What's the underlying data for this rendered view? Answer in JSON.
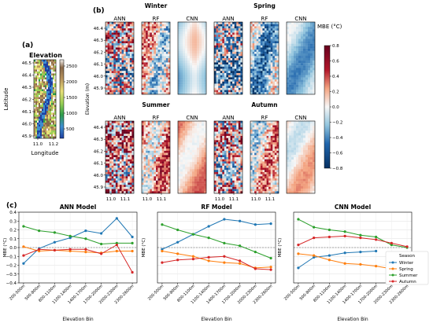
{
  "chart_data": [
    {
      "type": "heatmap",
      "panel_label": "(a)",
      "title": "Elevation",
      "xlabel": "Longitude",
      "ylabel": "Latitude",
      "x_ticks": [
        "11.0",
        "11.2"
      ],
      "y_ticks": [
        "46.5",
        "46.4",
        "46.3",
        "46.2",
        "46.1",
        "46.0",
        "45.9"
      ],
      "colorbar": {
        "label": "Elevation (m)",
        "ticks": [
          "2500",
          "2000",
          "1500",
          "1000",
          "500"
        ],
        "range": [
          200,
          2700
        ]
      },
      "colors": [
        "#1f3fa0",
        "#3d8fd0",
        "#2e9e4a",
        "#9bcf55",
        "#e9e07a",
        "#b9955e",
        "#8a6a4a",
        "#f4f1ee"
      ]
    },
    {
      "type": "heatmap",
      "panel_label": "(b)",
      "seasons": [
        {
          "name": "Winter",
          "models": [
            "ANN",
            "RF",
            "CNN"
          ]
        },
        {
          "name": "Spring",
          "models": [
            "ANN",
            "RF",
            "CNN"
          ]
        },
        {
          "name": "Summer",
          "models": [
            "ANN",
            "RF",
            "CNN"
          ]
        },
        {
          "name": "Autumn",
          "models": [
            "ANN",
            "RF",
            "CNN"
          ]
        }
      ],
      "y_ticks": [
        "46.4",
        "46.3",
        "46.2",
        "46.1",
        "46.0",
        "45.9"
      ],
      "x_ticks": [
        "11.0",
        "11.1"
      ],
      "colorbar": {
        "label": "MBE (°C)",
        "ticks": [
          "0.8",
          "0.6",
          "0.4",
          "0.2",
          "0.0",
          "−0.2",
          "−0.4",
          "−0.6",
          "−0.8"
        ],
        "range": [
          -0.8,
          0.8
        ]
      },
      "colors": {
        "pos": "#67001f",
        "mid": "#f7f7f7",
        "neg": "#053061"
      }
    },
    {
      "type": "line",
      "panel_label": "(c)",
      "categories": [
        "200-500m",
        "500-800m",
        "800-1100m",
        "1100-1400m",
        "1400-1700m",
        "1700-2000m",
        "2000-2300m",
        "2300-2600m"
      ],
      "xlabel": "Elevation Bin",
      "ylabel": "MBE (°C)",
      "ylim": [
        -0.4,
        0.4
      ],
      "y_ticks": [
        "0.4",
        "0.3",
        "0.2",
        "0.1",
        "0.0",
        "−0.1",
        "−0.2",
        "−0.3",
        "−0.4"
      ],
      "legend": {
        "title": "Season",
        "position": "lower-right",
        "labels": [
          "Winter",
          "Spring",
          "Summer",
          "Autumn"
        ]
      },
      "colors": {
        "Winter": "#1f77b4",
        "Spring": "#ff7f0e",
        "Summer": "#2ca02c",
        "Autumn": "#d62728"
      },
      "subplots": [
        {
          "title": "ANN Model",
          "series": [
            {
              "name": "Winter",
              "values": [
                -0.18,
                -0.01,
                0.06,
                0.11,
                0.19,
                0.16,
                0.33,
                0.12
              ]
            },
            {
              "name": "Spring",
              "values": [
                0.01,
                -0.04,
                -0.03,
                -0.04,
                -0.05,
                -0.06,
                -0.04,
                -0.04
              ]
            },
            {
              "name": "Summer",
              "values": [
                0.24,
                0.19,
                0.17,
                0.13,
                0.1,
                0.04,
                0.05,
                0.05
              ]
            },
            {
              "name": "Autumn",
              "values": [
                -0.09,
                -0.02,
                -0.03,
                -0.02,
                -0.02,
                -0.07,
                0.03,
                -0.28
              ]
            }
          ]
        },
        {
          "title": "RF Model",
          "series": [
            {
              "name": "Winter",
              "values": [
                -0.02,
                0.06,
                0.15,
                0.24,
                0.32,
                0.3,
                0.26,
                0.27
              ]
            },
            {
              "name": "Spring",
              "values": [
                -0.04,
                -0.07,
                -0.1,
                -0.15,
                -0.17,
                -0.18,
                -0.23,
                -0.22
              ]
            },
            {
              "name": "Summer",
              "values": [
                0.26,
                0.2,
                0.15,
                0.11,
                0.05,
                0.02,
                -0.05,
                -0.12
              ]
            },
            {
              "name": "Autumn",
              "values": [
                -0.17,
                -0.14,
                -0.13,
                -0.11,
                -0.1,
                -0.15,
                -0.24,
                -0.25
              ]
            }
          ]
        },
        {
          "title": "CNN Model",
          "series": [
            {
              "name": "Winter",
              "values": [
                -0.23,
                -0.11,
                -0.09,
                -0.06,
                -0.05,
                -0.04,
                null,
                null
              ]
            },
            {
              "name": "Spring",
              "values": [
                -0.07,
                -0.09,
                -0.14,
                -0.18,
                -0.19,
                -0.21,
                -0.24,
                -0.26
              ]
            },
            {
              "name": "Summer",
              "values": [
                0.32,
                0.23,
                0.2,
                0.18,
                0.14,
                0.12,
                0.03,
                0.0
              ]
            },
            {
              "name": "Autumn",
              "values": [
                0.03,
                0.11,
                0.12,
                0.13,
                0.11,
                0.09,
                0.05,
                0.01
              ]
            }
          ]
        }
      ]
    }
  ]
}
